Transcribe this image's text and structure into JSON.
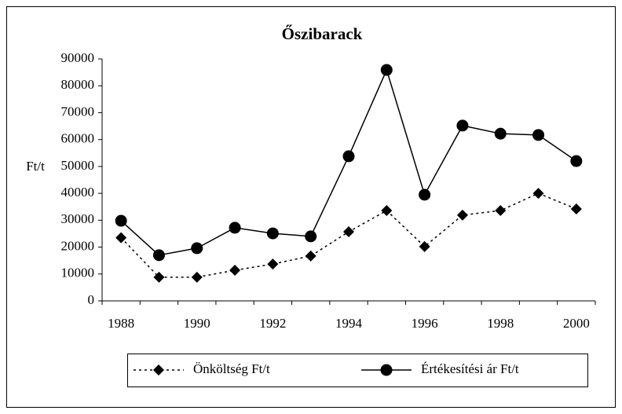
{
  "chart_data": {
    "type": "line",
    "title": "Őszibarack",
    "y_label": "Ft/t",
    "categories": [
      "1988",
      null,
      "1990",
      null,
      "1992",
      null,
      "1994",
      null,
      "1996",
      null,
      "1998",
      null,
      "2000"
    ],
    "series": [
      {
        "name": "Önköltség Ft/t",
        "color": "#000000",
        "line_style": "dotted",
        "marker": "diamond",
        "values": [
          23500,
          8800,
          8800,
          11400,
          13700,
          16700,
          25700,
          33600,
          20200,
          31900,
          33600,
          40000,
          34200
        ]
      },
      {
        "name": "Értékesítési ár Ft/t",
        "color": "#000000",
        "line_style": "solid",
        "marker": "circle",
        "values": [
          29800,
          17000,
          19600,
          27200,
          25100,
          24000,
          53800,
          85900,
          39500,
          65200,
          62200,
          61700,
          52000
        ]
      }
    ],
    "ylim": [
      0,
      90000
    ],
    "yticks": [
      0,
      10000,
      20000,
      30000,
      40000,
      50000,
      60000,
      70000,
      80000,
      90000
    ],
    "grid": false,
    "legend": "bottom"
  }
}
